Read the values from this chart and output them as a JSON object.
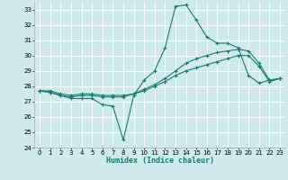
{
  "xlabel": "Humidex (Indice chaleur)",
  "bg_color": "#ceeaed",
  "grid_color": "#ffffff",
  "line_color": "#1a7a6e",
  "xlim": [
    -0.5,
    23.5
  ],
  "ylim": [
    24,
    33.5
  ],
  "yticks": [
    24,
    25,
    26,
    27,
    28,
    29,
    30,
    31,
    32,
    33
  ],
  "xticks": [
    0,
    1,
    2,
    3,
    4,
    5,
    6,
    7,
    8,
    9,
    10,
    11,
    12,
    13,
    14,
    15,
    16,
    17,
    18,
    19,
    20,
    21,
    22,
    23
  ],
  "line1_x": [
    0,
    1,
    2,
    3,
    4,
    5,
    6,
    7,
    8,
    9,
    10,
    11,
    12,
    13,
    14,
    15,
    16,
    17,
    18,
    19,
    20,
    21,
    22,
    23
  ],
  "line1_y": [
    27.7,
    27.6,
    27.4,
    27.2,
    27.2,
    27.2,
    26.8,
    26.7,
    24.5,
    27.4,
    28.4,
    29.0,
    30.5,
    33.2,
    33.3,
    32.3,
    31.2,
    30.8,
    30.8,
    30.5,
    28.7,
    28.2,
    28.4,
    28.5
  ],
  "line2_x": [
    0,
    1,
    2,
    3,
    4,
    5,
    6,
    7,
    8,
    9,
    10,
    11,
    12,
    13,
    14,
    15,
    16,
    17,
    18,
    19,
    20,
    21,
    22,
    23
  ],
  "line2_y": [
    27.7,
    27.6,
    27.4,
    27.3,
    27.4,
    27.4,
    27.3,
    27.3,
    27.3,
    27.5,
    27.8,
    28.1,
    28.5,
    29.0,
    29.5,
    29.8,
    30.0,
    30.2,
    30.3,
    30.4,
    30.3,
    29.5,
    28.4,
    28.5
  ],
  "line3_x": [
    0,
    1,
    2,
    3,
    4,
    5,
    6,
    7,
    8,
    9,
    10,
    11,
    12,
    13,
    14,
    15,
    16,
    17,
    18,
    19,
    20,
    21,
    22,
    23
  ],
  "line3_y": [
    27.7,
    27.7,
    27.5,
    27.4,
    27.5,
    27.5,
    27.4,
    27.4,
    27.4,
    27.5,
    27.7,
    28.0,
    28.3,
    28.7,
    29.0,
    29.2,
    29.4,
    29.6,
    29.8,
    30.0,
    30.0,
    29.3,
    28.3,
    28.5
  ],
  "tick_fontsize": 5.0,
  "xlabel_fontsize": 6.0
}
